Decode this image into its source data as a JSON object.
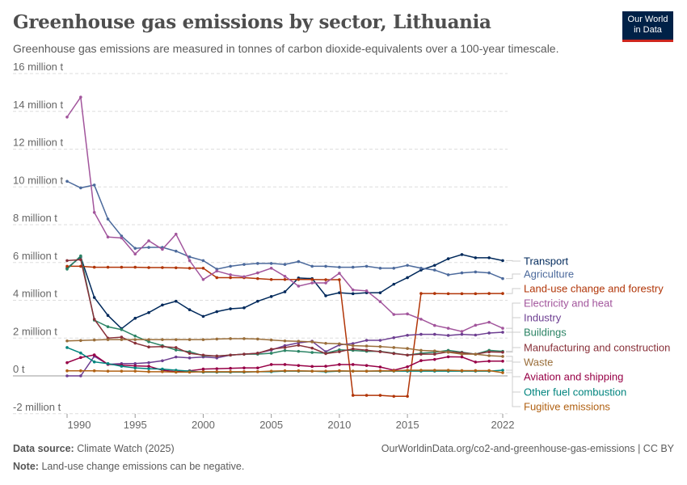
{
  "header": {
    "title": "Greenhouse gas emissions by sector, Lithuania",
    "subtitle": "Greenhouse gas emissions are measured in tonnes of carbon dioxide-equivalents over a 100-year timescale.",
    "logo_text": "Our World in Data"
  },
  "footer": {
    "source_label": "Data source:",
    "source": "Climate Watch (2025)",
    "url": "OurWorldinData.org/co2-and-greenhouse-gas-emissions | CC BY",
    "note_label": "Note:",
    "note": "Land-use change emissions can be negative."
  },
  "chart_data": {
    "type": "line",
    "title": "Greenhouse gas emissions by sector, Lithuania",
    "ylim": [
      -2000000,
      16000000
    ],
    "xlim": [
      1990,
      2022
    ],
    "grid": true,
    "legend_placement": "right (line-end labels)",
    "y_ticks": [
      {
        "value": -2000000,
        "label": "-2 million t"
      },
      {
        "value": 0,
        "label": "0 t"
      },
      {
        "value": 2000000,
        "label": "2 million t"
      },
      {
        "value": 4000000,
        "label": "4 million t"
      },
      {
        "value": 6000000,
        "label": "6 million t"
      },
      {
        "value": 8000000,
        "label": "8 million t"
      },
      {
        "value": 10000000,
        "label": "10 million t"
      },
      {
        "value": 12000000,
        "label": "12 million t"
      },
      {
        "value": 14000000,
        "label": "14 million t"
      },
      {
        "value": 16000000,
        "label": "16 million t"
      }
    ],
    "x_ticks": [
      "1990",
      "1995",
      "2000",
      "2005",
      "2010",
      "2015",
      "2022"
    ],
    "x": [
      1990,
      1991,
      1992,
      1993,
      1994,
      1995,
      1996,
      1997,
      1998,
      1999,
      2000,
      2001,
      2002,
      2003,
      2004,
      2005,
      2006,
      2007,
      2008,
      2009,
      2010,
      2011,
      2012,
      2013,
      2014,
      2015,
      2016,
      2017,
      2018,
      2019,
      2020,
      2021,
      2022
    ],
    "series_unit": "million t",
    "series": [
      {
        "name": "Transport",
        "color": "#00295b",
        "values": [
          5.7,
          6.3,
          4.15,
          3.2,
          2.5,
          3.05,
          3.35,
          3.75,
          3.95,
          3.5,
          3.15,
          3.4,
          3.55,
          3.6,
          3.95,
          4.2,
          4.45,
          5.18,
          5.15,
          4.24,
          4.4,
          4.35,
          4.4,
          4.4,
          4.85,
          5.2,
          5.6,
          5.85,
          6.2,
          6.42,
          6.25,
          6.25,
          6.1
        ]
      },
      {
        "name": "Agriculture",
        "color": "#4c6a9c",
        "values": [
          10.3,
          9.95,
          10.1,
          8.3,
          7.4,
          6.75,
          6.8,
          6.8,
          6.6,
          6.3,
          6.1,
          5.65,
          5.8,
          5.9,
          5.95,
          5.95,
          5.9,
          6.05,
          5.8,
          5.8,
          5.75,
          5.75,
          5.8,
          5.7,
          5.7,
          5.85,
          5.7,
          5.6,
          5.35,
          5.45,
          5.5,
          5.45,
          5.15
        ]
      },
      {
        "name": "Land-use change and forestry",
        "color": "#b13507",
        "values": [
          5.8,
          5.8,
          5.75,
          5.75,
          5.75,
          5.75,
          5.73,
          5.73,
          5.72,
          5.7,
          5.7,
          5.2,
          5.2,
          5.2,
          5.15,
          5.1,
          5.1,
          5.1,
          5.1,
          5.09,
          5.09,
          -1.03,
          -1.03,
          -1.03,
          -1.08,
          -1.08,
          4.36,
          4.36,
          4.35,
          4.35,
          4.35,
          4.36,
          4.36
        ]
      },
      {
        "name": "Electricity and heat",
        "color": "#a2559c",
        "values": [
          13.7,
          14.75,
          8.65,
          7.35,
          7.3,
          6.45,
          7.15,
          6.7,
          7.5,
          6.1,
          5.1,
          5.55,
          5.35,
          5.25,
          5.45,
          5.7,
          5.27,
          4.75,
          4.92,
          4.92,
          5.43,
          4.55,
          4.5,
          3.93,
          3.25,
          3.28,
          3.0,
          2.67,
          2.52,
          2.35,
          2.68,
          2.84,
          2.52
        ]
      },
      {
        "name": "Industry",
        "color": "#6d3e91",
        "values": [
          0,
          0,
          1.04,
          0.61,
          0.65,
          0.65,
          0.7,
          0.8,
          1.0,
          0.95,
          1.0,
          0.95,
          1.1,
          1.15,
          1.2,
          1.37,
          1.6,
          1.75,
          1.83,
          1.28,
          1.64,
          1.71,
          1.88,
          1.88,
          2.02,
          2.15,
          2.2,
          2.2,
          2.14,
          2.2,
          2.16,
          2.27,
          2.31
        ]
      },
      {
        "name": "Buildings",
        "color": "#2c8465",
        "values": [
          5.65,
          6.35,
          2.95,
          2.6,
          2.45,
          2.11,
          1.81,
          1.6,
          1.37,
          1.28,
          1.07,
          1.05,
          1.1,
          1.15,
          1.15,
          1.2,
          1.34,
          1.3,
          1.24,
          1.2,
          1.38,
          1.35,
          1.3,
          1.3,
          1.2,
          1.1,
          1.2,
          1.25,
          1.35,
          1.25,
          1.15,
          1.35,
          1.3
        ]
      },
      {
        "name": "Manufacturing and construction",
        "color": "#883039",
        "values": [
          6.1,
          6.15,
          3.0,
          2.0,
          2.05,
          1.73,
          1.53,
          1.55,
          1.5,
          1.19,
          1.1,
          1.05,
          1.1,
          1.15,
          1.2,
          1.41,
          1.5,
          1.62,
          1.47,
          1.18,
          1.28,
          1.43,
          1.36,
          1.28,
          1.18,
          1.1,
          1.15,
          1.15,
          1.27,
          1.22,
          1.15,
          1.27,
          1.25
        ]
      },
      {
        "name": "Waste",
        "color": "#996d39",
        "values": [
          1.85,
          1.87,
          1.9,
          1.92,
          1.92,
          1.92,
          1.92,
          1.92,
          1.92,
          1.92,
          1.92,
          1.95,
          1.97,
          1.97,
          1.95,
          1.9,
          1.85,
          1.83,
          1.8,
          1.72,
          1.7,
          1.6,
          1.58,
          1.55,
          1.5,
          1.45,
          1.35,
          1.32,
          1.25,
          1.15,
          1.15,
          1.07,
          1.03
        ]
      },
      {
        "name": "Aviation and shipping",
        "color": "#970046",
        "values": [
          0.7,
          0.97,
          1.11,
          0.61,
          0.57,
          0.53,
          0.51,
          0.3,
          0.22,
          0.27,
          0.36,
          0.38,
          0.4,
          0.42,
          0.42,
          0.6,
          0.6,
          0.55,
          0.5,
          0.51,
          0.6,
          0.6,
          0.55,
          0.47,
          0.3,
          0.48,
          0.81,
          0.87,
          1.01,
          1.0,
          0.73,
          0.78,
          0.78
        ]
      },
      {
        "name": "Other fuel combustion",
        "color": "#00847e",
        "values": [
          1.5,
          1.21,
          0.74,
          0.65,
          0.51,
          0.42,
          0.38,
          0.36,
          0.3,
          0.25,
          0.2,
          0.2,
          0.2,
          0.2,
          0.22,
          0.22,
          0.25,
          0.25,
          0.25,
          0.22,
          0.25,
          0.25,
          0.25,
          0.25,
          0.25,
          0.25,
          0.25,
          0.25,
          0.25,
          0.25,
          0.25,
          0.25,
          0.3
        ]
      },
      {
        "name": "Fugitive emissions",
        "color": "#b16214",
        "values": [
          0.27,
          0.27,
          0.27,
          0.25,
          0.25,
          0.25,
          0.22,
          0.22,
          0.2,
          0.2,
          0.22,
          0.22,
          0.22,
          0.22,
          0.22,
          0.25,
          0.27,
          0.27,
          0.25,
          0.25,
          0.27,
          0.25,
          0.25,
          0.27,
          0.27,
          0.3,
          0.3,
          0.3,
          0.3,
          0.28,
          0.28,
          0.28,
          0.17
        ]
      }
    ]
  }
}
